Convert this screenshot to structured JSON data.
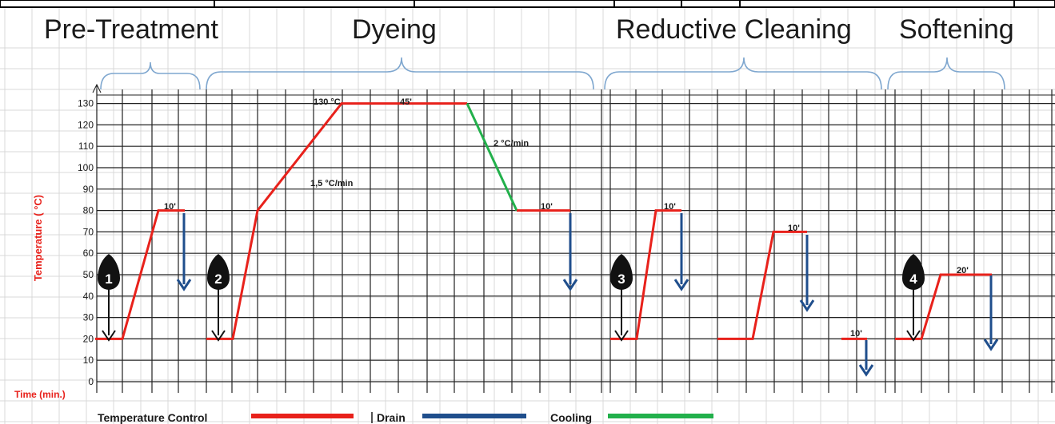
{
  "sections": [
    "Pre-Treatment",
    "Dyeing",
    "Reductive Cleaning",
    "Softening"
  ],
  "y_axis": {
    "label": "Temperature ( °C)",
    "ticks": [
      "0",
      "10",
      "20",
      "30",
      "40",
      "50",
      "60",
      "70",
      "80",
      "90",
      "100",
      "110",
      "120",
      "130"
    ]
  },
  "x_axis": {
    "label": "Time (min.)"
  },
  "annotations": {
    "pre_hold": "10'",
    "dye_rate": "1,5 °C/min",
    "dye_peak": "130 °C",
    "dye_hold": "45'",
    "cool_rate": "2 °C/min",
    "dye_end_hold": "10'",
    "rc_hold_1": "10'",
    "rc_hold_2": "10'",
    "rc_hold_3": "10'",
    "soft_hold": "20'"
  },
  "steps": [
    "1",
    "2",
    "3",
    "4"
  ],
  "legend": {
    "temperature_control": "Temperature Control",
    "drain": "Drain",
    "cooling": "Cooling"
  },
  "colors": {
    "temperature_control": "#e8211b",
    "drain": "#1f4e8c",
    "cooling": "#22b04b",
    "bracket": "#7fa7cf"
  },
  "chart_data": {
    "type": "line",
    "y_unit": "°C",
    "ylim": [
      0,
      130
    ],
    "series": [
      {
        "name": "Temperature Control",
        "segment": "Pre-Treatment",
        "y": [
          20,
          20,
          80,
          80
        ]
      },
      {
        "name": "Temperature Control",
        "segment": "Dyeing",
        "y": [
          20,
          20,
          80,
          130,
          130
        ]
      },
      {
        "name": "Cooling",
        "segment": "Dyeing",
        "y": [
          130,
          80
        ]
      },
      {
        "name": "Temperature Control",
        "segment": "Dyeing end",
        "y": [
          80,
          80
        ]
      },
      {
        "name": "Temperature Control",
        "segment": "Reductive Cleaning 1",
        "y": [
          20,
          20,
          80,
          80
        ]
      },
      {
        "name": "Temperature Control",
        "segment": "Reductive Cleaning 2",
        "y": [
          20,
          20,
          70,
          70
        ]
      },
      {
        "name": "Temperature Control",
        "segment": "Reductive Cleaning 3",
        "y": [
          20,
          20
        ]
      },
      {
        "name": "Temperature Control",
        "segment": "Softening",
        "y": [
          20,
          20,
          50,
          50
        ]
      }
    ]
  }
}
